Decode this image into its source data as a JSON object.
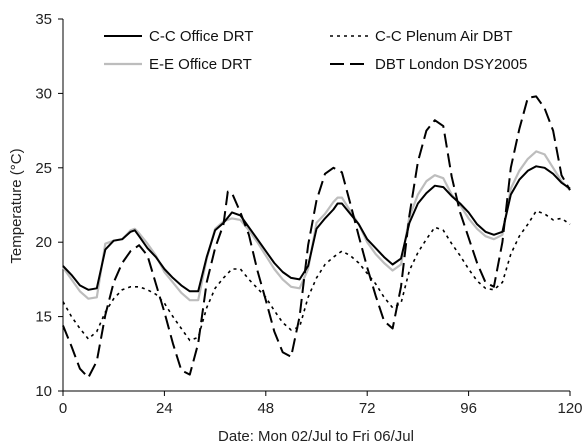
{
  "chart_data": {
    "type": "line",
    "title": "",
    "xlabel": "Date: Mon 02/Jul to Fri 06/Jul",
    "ylabel": "Temperature (°C)",
    "xlim": [
      0,
      120
    ],
    "ylim": [
      10,
      35
    ],
    "xticks": [
      0,
      24,
      48,
      72,
      96,
      120
    ],
    "yticks": [
      10,
      15,
      20,
      25,
      30,
      35
    ],
    "grid": false,
    "legend_position": "top",
    "series": [
      {
        "name": "C-C Office DRT",
        "color": "#000000",
        "style": "solid",
        "points": [
          [
            0,
            18.4
          ],
          [
            2,
            17.8
          ],
          [
            4,
            17.1
          ],
          [
            6,
            16.8
          ],
          [
            8,
            16.9
          ],
          [
            10,
            19.5
          ],
          [
            12,
            20.1
          ],
          [
            14,
            20.2
          ],
          [
            16,
            20.7
          ],
          [
            17,
            20.8
          ],
          [
            18,
            20.4
          ],
          [
            20,
            19.6
          ],
          [
            22,
            19.0
          ],
          [
            24,
            18.2
          ],
          [
            26,
            17.6
          ],
          [
            28,
            17.1
          ],
          [
            30,
            16.7
          ],
          [
            32,
            16.7
          ],
          [
            34,
            19.0
          ],
          [
            36,
            20.8
          ],
          [
            38,
            21.3
          ],
          [
            40,
            22.0
          ],
          [
            42,
            21.8
          ],
          [
            44,
            21.0
          ],
          [
            46,
            20.2
          ],
          [
            48,
            19.4
          ],
          [
            50,
            18.6
          ],
          [
            52,
            18.0
          ],
          [
            54,
            17.6
          ],
          [
            56,
            17.5
          ],
          [
            58,
            18.4
          ],
          [
            60,
            20.9
          ],
          [
            62,
            21.6
          ],
          [
            64,
            22.2
          ],
          [
            65,
            22.6
          ],
          [
            66,
            22.6
          ],
          [
            68,
            21.9
          ],
          [
            70,
            21.2
          ],
          [
            72,
            20.2
          ],
          [
            74,
            19.6
          ],
          [
            76,
            19.0
          ],
          [
            78,
            18.5
          ],
          [
            80,
            18.9
          ],
          [
            82,
            21.3
          ],
          [
            84,
            22.6
          ],
          [
            86,
            23.3
          ],
          [
            88,
            23.8
          ],
          [
            90,
            23.7
          ],
          [
            92,
            23.1
          ],
          [
            94,
            22.6
          ],
          [
            96,
            22.0
          ],
          [
            98,
            21.2
          ],
          [
            100,
            20.7
          ],
          [
            102,
            20.5
          ],
          [
            104,
            20.7
          ],
          [
            106,
            23.2
          ],
          [
            108,
            24.2
          ],
          [
            110,
            24.8
          ],
          [
            112,
            25.1
          ],
          [
            114,
            25.0
          ],
          [
            116,
            24.6
          ],
          [
            118,
            24.0
          ],
          [
            120,
            23.6
          ]
        ]
      },
      {
        "name": "E-E Office DRT",
        "color": "#bdbdbd",
        "style": "solid",
        "points": [
          [
            0,
            18.3
          ],
          [
            2,
            17.5
          ],
          [
            4,
            16.7
          ],
          [
            6,
            16.2
          ],
          [
            8,
            16.3
          ],
          [
            10,
            19.9
          ],
          [
            12,
            20.1
          ],
          [
            14,
            20.2
          ],
          [
            16,
            20.8
          ],
          [
            17,
            20.9
          ],
          [
            18,
            20.6
          ],
          [
            20,
            19.9
          ],
          [
            22,
            19.1
          ],
          [
            24,
            18.0
          ],
          [
            26,
            17.3
          ],
          [
            28,
            16.6
          ],
          [
            30,
            16.1
          ],
          [
            32,
            16.1
          ],
          [
            34,
            18.9
          ],
          [
            36,
            20.9
          ],
          [
            38,
            21.4
          ],
          [
            40,
            21.6
          ],
          [
            42,
            21.5
          ],
          [
            44,
            20.8
          ],
          [
            46,
            20.0
          ],
          [
            48,
            19.1
          ],
          [
            50,
            18.2
          ],
          [
            52,
            17.5
          ],
          [
            54,
            17.0
          ],
          [
            56,
            16.9
          ],
          [
            58,
            18.2
          ],
          [
            60,
            21.3
          ],
          [
            62,
            21.9
          ],
          [
            64,
            22.7
          ],
          [
            65,
            23.0
          ],
          [
            66,
            23.0
          ],
          [
            68,
            22.1
          ],
          [
            70,
            21.2
          ],
          [
            72,
            20.0
          ],
          [
            74,
            19.2
          ],
          [
            76,
            18.6
          ],
          [
            78,
            18.1
          ],
          [
            80,
            18.5
          ],
          [
            82,
            21.7
          ],
          [
            84,
            23.2
          ],
          [
            86,
            24.1
          ],
          [
            88,
            24.5
          ],
          [
            90,
            24.3
          ],
          [
            92,
            23.2
          ],
          [
            94,
            22.5
          ],
          [
            96,
            21.6
          ],
          [
            98,
            20.9
          ],
          [
            100,
            20.4
          ],
          [
            102,
            20.2
          ],
          [
            104,
            20.5
          ],
          [
            106,
            23.6
          ],
          [
            108,
            24.8
          ],
          [
            110,
            25.6
          ],
          [
            112,
            26.1
          ],
          [
            114,
            25.9
          ],
          [
            116,
            25.0
          ],
          [
            118,
            24.1
          ],
          [
            120,
            23.5
          ]
        ]
      },
      {
        "name": "C-C Plenum Air DBT",
        "color": "#000000",
        "style": "dotted",
        "points": [
          [
            0,
            16.0
          ],
          [
            2,
            15.0
          ],
          [
            4,
            14.2
          ],
          [
            6,
            13.5
          ],
          [
            8,
            14.0
          ],
          [
            10,
            15.3
          ],
          [
            12,
            16.2
          ],
          [
            14,
            16.8
          ],
          [
            16,
            17.0
          ],
          [
            18,
            17.0
          ],
          [
            20,
            16.8
          ],
          [
            22,
            16.5
          ],
          [
            24,
            15.9
          ],
          [
            26,
            15.0
          ],
          [
            28,
            14.2
          ],
          [
            30,
            13.4
          ],
          [
            32,
            13.6
          ],
          [
            34,
            15.6
          ],
          [
            36,
            16.9
          ],
          [
            38,
            17.6
          ],
          [
            40,
            18.2
          ],
          [
            42,
            18.2
          ],
          [
            44,
            17.5
          ],
          [
            46,
            16.9
          ],
          [
            48,
            16.3
          ],
          [
            50,
            15.4
          ],
          [
            52,
            14.6
          ],
          [
            54,
            14.1
          ],
          [
            56,
            14.3
          ],
          [
            58,
            16.3
          ],
          [
            60,
            17.6
          ],
          [
            62,
            18.5
          ],
          [
            64,
            19.0
          ],
          [
            66,
            19.4
          ],
          [
            68,
            19.1
          ],
          [
            70,
            18.6
          ],
          [
            72,
            17.9
          ],
          [
            74,
            17.2
          ],
          [
            76,
            16.3
          ],
          [
            78,
            15.6
          ],
          [
            80,
            15.9
          ],
          [
            82,
            18.1
          ],
          [
            84,
            19.3
          ],
          [
            86,
            20.2
          ],
          [
            88,
            21.0
          ],
          [
            90,
            20.8
          ],
          [
            92,
            19.9
          ],
          [
            94,
            19.1
          ],
          [
            96,
            18.2
          ],
          [
            98,
            17.4
          ],
          [
            100,
            16.9
          ],
          [
            102,
            16.8
          ],
          [
            104,
            17.3
          ],
          [
            106,
            19.2
          ],
          [
            108,
            20.4
          ],
          [
            110,
            21.2
          ],
          [
            112,
            22.1
          ],
          [
            114,
            21.9
          ],
          [
            116,
            21.5
          ],
          [
            118,
            21.6
          ],
          [
            120,
            21.2
          ]
        ]
      },
      {
        "name": "DBT London DSY2005",
        "color": "#000000",
        "style": "dashed",
        "points": [
          [
            0,
            14.4
          ],
          [
            2,
            13.0
          ],
          [
            4,
            11.5
          ],
          [
            6,
            10.9
          ],
          [
            8,
            12.0
          ],
          [
            10,
            15.1
          ],
          [
            12,
            17.3
          ],
          [
            14,
            18.6
          ],
          [
            16,
            19.4
          ],
          [
            18,
            19.8
          ],
          [
            20,
            19.1
          ],
          [
            22,
            17.2
          ],
          [
            24,
            15.3
          ],
          [
            26,
            13.2
          ],
          [
            28,
            11.4
          ],
          [
            30,
            11.1
          ],
          [
            32,
            13.2
          ],
          [
            34,
            17.3
          ],
          [
            36,
            19.6
          ],
          [
            38,
            21.2
          ],
          [
            39,
            23.4
          ],
          [
            40,
            23.3
          ],
          [
            42,
            22.0
          ],
          [
            44,
            20.5
          ],
          [
            46,
            18.1
          ],
          [
            48,
            16.1
          ],
          [
            50,
            14.0
          ],
          [
            52,
            12.6
          ],
          [
            54,
            12.3
          ],
          [
            56,
            15.0
          ],
          [
            58,
            19.8
          ],
          [
            60,
            22.8
          ],
          [
            62,
            24.6
          ],
          [
            64,
            25.0
          ],
          [
            66,
            24.7
          ],
          [
            68,
            22.6
          ],
          [
            70,
            20.4
          ],
          [
            72,
            18.3
          ],
          [
            74,
            16.4
          ],
          [
            76,
            14.7
          ],
          [
            78,
            14.2
          ],
          [
            80,
            17.0
          ],
          [
            82,
            21.8
          ],
          [
            84,
            25.4
          ],
          [
            86,
            27.5
          ],
          [
            88,
            28.2
          ],
          [
            90,
            27.8
          ],
          [
            92,
            24.4
          ],
          [
            94,
            22.0
          ],
          [
            96,
            20.3
          ],
          [
            98,
            18.6
          ],
          [
            100,
            17.3
          ],
          [
            102,
            17.0
          ],
          [
            104,
            20.0
          ],
          [
            106,
            25.0
          ],
          [
            108,
            27.6
          ],
          [
            110,
            29.7
          ],
          [
            112,
            29.8
          ],
          [
            114,
            29.0
          ],
          [
            116,
            27.5
          ],
          [
            118,
            24.5
          ],
          [
            120,
            23.5
          ]
        ]
      }
    ]
  }
}
